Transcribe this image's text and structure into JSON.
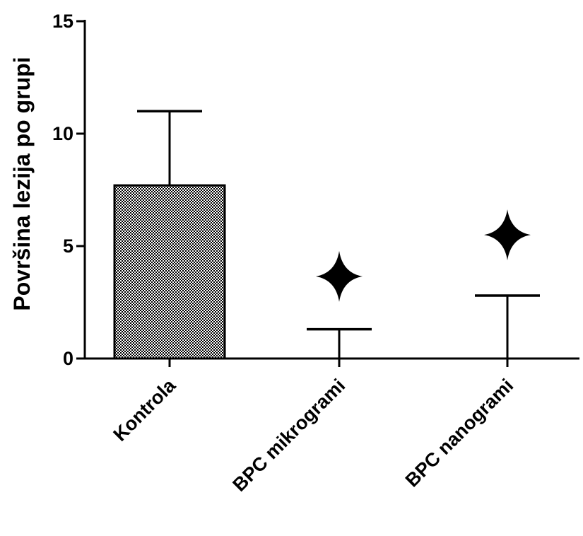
{
  "chart_data": {
    "type": "bar",
    "title": "",
    "xlabel": "",
    "ylabel": "Površina lezija po grupi",
    "ylim": [
      0,
      15
    ],
    "yticks": [
      0,
      5,
      10,
      15
    ],
    "categories": [
      "Kontrola",
      "BPC mikrogrami",
      "BPC nanogrami"
    ],
    "values": [
      7.7,
      0,
      0
    ],
    "error_upper": [
      11.0,
      1.3,
      2.8
    ],
    "markers": [
      {
        "category": "BPC mikrogrami",
        "y": 3.65,
        "shape": "four-point-star"
      },
      {
        "category": "BPC nanogrami",
        "y": 5.5,
        "shape": "four-point-star"
      }
    ],
    "bar_fill": "checkered",
    "grid": false,
    "legend": "none"
  },
  "colors": {
    "ink": "#000000",
    "background": "#ffffff"
  }
}
